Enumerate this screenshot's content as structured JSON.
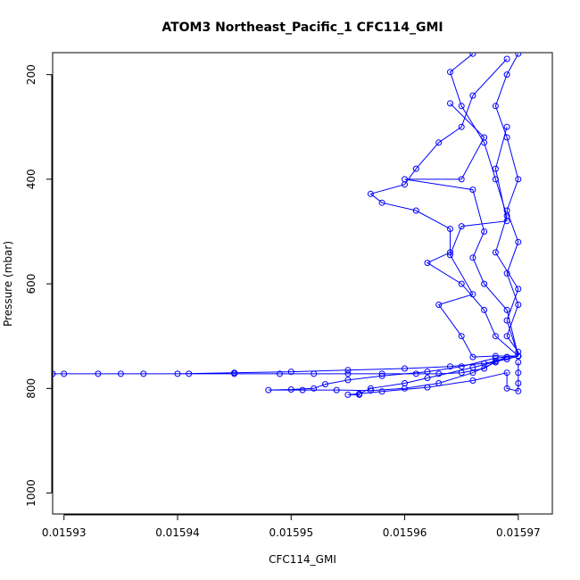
{
  "chart_data": {
    "type": "line",
    "title": "ATOM3 Northeast_Pacific_1 CFC114_GMI",
    "xlabel": "CFC114_GMI",
    "ylabel": "Pressure (mbar)",
    "xlim": [
      0.015929,
      0.015973
    ],
    "ylim": [
      1040,
      158
    ],
    "y_reversed": true,
    "grid": false,
    "x_ticks": [
      {
        "value": 0.01593,
        "label": "0.01593"
      },
      {
        "value": 0.01594,
        "label": "0.01594"
      },
      {
        "value": 0.01595,
        "label": "0.01595"
      },
      {
        "value": 0.01596,
        "label": "0.01596"
      },
      {
        "value": 0.01597,
        "label": "0.01597"
      }
    ],
    "y_ticks": [
      {
        "value": 200,
        "label": "200"
      },
      {
        "value": 400,
        "label": "400"
      },
      {
        "value": 600,
        "label": "600"
      },
      {
        "value": 800,
        "label": "800"
      },
      {
        "value": 1000,
        "label": "1000"
      }
    ],
    "colors": {
      "series": "#0000ff"
    },
    "series": [
      {
        "values": [
          [
            0.01597,
            160
          ],
          [
            0.015969,
            200
          ],
          [
            0.015968,
            260
          ],
          [
            0.015969,
            320
          ],
          [
            0.01597,
            400
          ],
          [
            0.015969,
            460
          ],
          [
            0.01597,
            520
          ],
          [
            0.015969,
            580
          ],
          [
            0.01597,
            640
          ],
          [
            0.015969,
            700
          ],
          [
            0.01597,
            730
          ],
          [
            0.01597,
            738
          ]
        ]
      },
      {
        "values": [
          [
            0.015966,
            160
          ],
          [
            0.015964,
            195
          ],
          [
            0.015965,
            260
          ],
          [
            0.015967,
            330
          ],
          [
            0.015968,
            400
          ],
          [
            0.015969,
            470
          ],
          [
            0.015968,
            540
          ],
          [
            0.01597,
            610
          ],
          [
            0.015969,
            670
          ],
          [
            0.01597,
            738
          ]
        ]
      },
      {
        "values": [
          [
            0.015969,
            170
          ],
          [
            0.015966,
            240
          ],
          [
            0.015965,
            300
          ],
          [
            0.015963,
            330
          ],
          [
            0.015961,
            380
          ],
          [
            0.01596,
            410
          ],
          [
            0.015957,
            428
          ],
          [
            0.015958,
            445
          ],
          [
            0.015961,
            460
          ],
          [
            0.015964,
            495
          ],
          [
            0.015964,
            540
          ],
          [
            0.015962,
            560
          ],
          [
            0.015965,
            600
          ],
          [
            0.015967,
            650
          ],
          [
            0.015968,
            700
          ],
          [
            0.01597,
            738
          ]
        ]
      },
      {
        "values": [
          [
            0.015964,
            255
          ],
          [
            0.015967,
            320
          ],
          [
            0.015965,
            400
          ],
          [
            0.01596,
            400
          ],
          [
            0.015966,
            420
          ],
          [
            0.015967,
            500
          ],
          [
            0.015966,
            550
          ],
          [
            0.015967,
            600
          ],
          [
            0.015969,
            650
          ],
          [
            0.01597,
            738
          ]
        ]
      },
      {
        "values": [
          [
            0.015969,
            300
          ],
          [
            0.015968,
            380
          ],
          [
            0.015969,
            480
          ],
          [
            0.015965,
            490
          ],
          [
            0.015964,
            545
          ],
          [
            0.015966,
            620
          ],
          [
            0.015963,
            640
          ],
          [
            0.015965,
            700
          ],
          [
            0.015966,
            740
          ],
          [
            0.015968,
            738
          ],
          [
            0.01597,
            738
          ]
        ]
      },
      {
        "values": [
          [
            0.01597,
            738
          ],
          [
            0.015969,
            744
          ],
          [
            0.015967,
            752
          ],
          [
            0.015964,
            758
          ],
          [
            0.01596,
            762
          ],
          [
            0.015955,
            765
          ],
          [
            0.01595,
            768
          ],
          [
            0.015945,
            770
          ],
          [
            0.01594,
            772
          ],
          [
            0.015935,
            772
          ],
          [
            0.01593,
            772
          ],
          [
            0.015929,
            772
          ],
          [
            0.015933,
            772
          ],
          [
            0.015937,
            772
          ],
          [
            0.015941,
            772
          ],
          [
            0.015945,
            772
          ],
          [
            0.015949,
            772
          ],
          [
            0.015952,
            772
          ],
          [
            0.015955,
            772
          ],
          [
            0.015958,
            772
          ],
          [
            0.015961,
            772
          ],
          [
            0.015963,
            772
          ],
          [
            0.015965,
            770
          ],
          [
            0.015967,
            762
          ],
          [
            0.015968,
            748
          ],
          [
            0.015969,
            740
          ]
        ]
      },
      {
        "values": [
          [
            0.01597,
            738
          ],
          [
            0.015968,
            742
          ],
          [
            0.015965,
            758
          ],
          [
            0.015962,
            768
          ],
          [
            0.015958,
            776
          ],
          [
            0.015955,
            784
          ],
          [
            0.015953,
            792
          ],
          [
            0.015952,
            800
          ],
          [
            0.01595,
            802
          ],
          [
            0.015948,
            803
          ],
          [
            0.015951,
            803
          ],
          [
            0.015954,
            803
          ],
          [
            0.015957,
            804
          ],
          [
            0.01596,
            800
          ],
          [
            0.015963,
            790
          ],
          [
            0.015966,
            770
          ],
          [
            0.015968,
            750
          ],
          [
            0.015969,
            740
          ]
        ]
      },
      {
        "values": [
          [
            0.01597,
            738
          ],
          [
            0.015966,
            760
          ],
          [
            0.015962,
            780
          ],
          [
            0.01596,
            790
          ],
          [
            0.015957,
            800
          ],
          [
            0.015956,
            810
          ],
          [
            0.015956,
            812
          ],
          [
            0.015955,
            812
          ],
          [
            0.015958,
            806
          ],
          [
            0.015962,
            798
          ],
          [
            0.015966,
            785
          ],
          [
            0.015969,
            770
          ],
          [
            0.015969,
            800
          ],
          [
            0.01597,
            805
          ],
          [
            0.01597,
            790
          ],
          [
            0.01597,
            770
          ],
          [
            0.01597,
            750
          ]
        ]
      }
    ]
  }
}
